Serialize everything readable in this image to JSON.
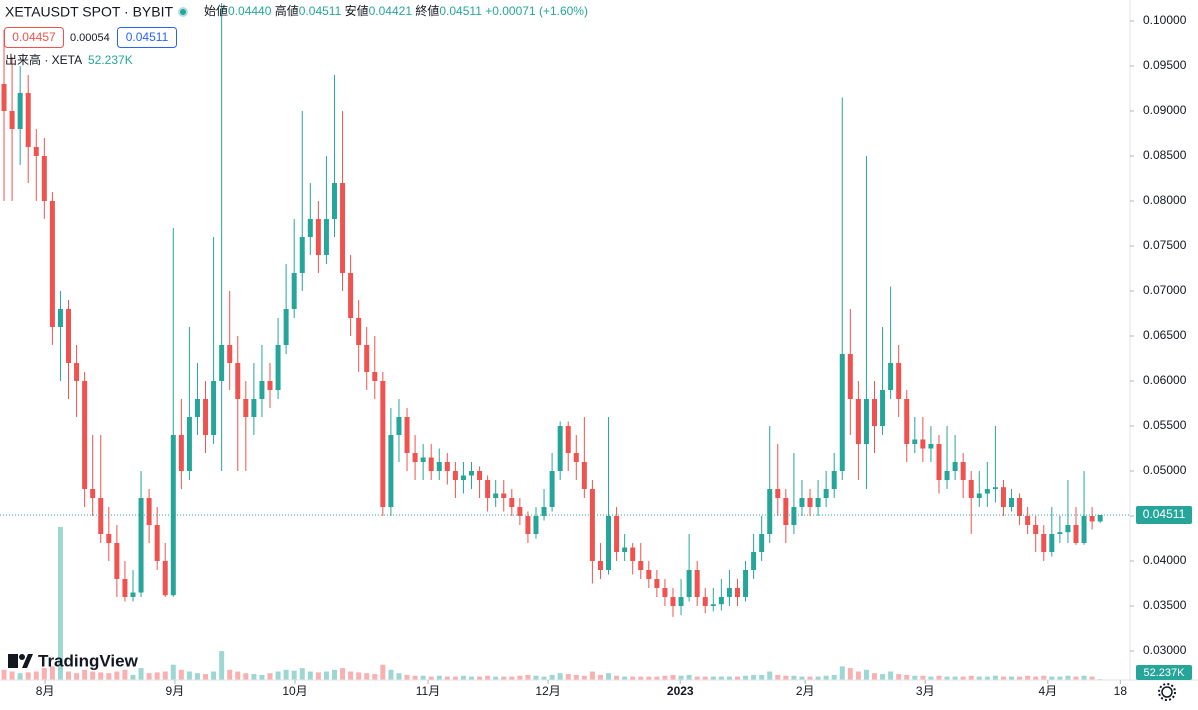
{
  "header": {
    "symbol": "XETAUSDT SPOT · BYBIT",
    "ohlc": [
      {
        "label": "始値",
        "value": "0.04440"
      },
      {
        "label": "高値",
        "value": "0.04511"
      },
      {
        "label": "安値",
        "value": "0.04421"
      },
      {
        "label": "終値",
        "value": "0.04511"
      }
    ],
    "change": "+0.00071 (+1.60%)",
    "bid": "0.04457",
    "spread": "0.00054",
    "ask": "0.04511",
    "volume_title": "出来高 · XETA",
    "volume_value": "52.237K",
    "logo": "TradingView"
  },
  "chart_data": {
    "type": "candlestick",
    "up_color": "#26a69a",
    "down_color": "#ef5350",
    "grid": false,
    "xlim": [
      -0.5,
      139.7
    ],
    "ylim": [
      0.02678,
      0.10233
    ],
    "yticks": [
      {
        "value": 0.1,
        "label": "0.10000"
      },
      {
        "value": 0.095,
        "label": "0.09500"
      },
      {
        "value": 0.09,
        "label": "0.09000"
      },
      {
        "value": 0.085,
        "label": "0.08500"
      },
      {
        "value": 0.08,
        "label": "0.08000"
      },
      {
        "value": 0.075,
        "label": "0.07500"
      },
      {
        "value": 0.07,
        "label": "0.07000"
      },
      {
        "value": 0.065,
        "label": "0.06500"
      },
      {
        "value": 0.06,
        "label": "0.06000"
      },
      {
        "value": 0.055,
        "label": "0.05500"
      },
      {
        "value": 0.05,
        "label": "0.05000"
      },
      {
        "value": 0.045,
        "label": "0.04500"
      },
      {
        "value": 0.04,
        "label": "0.04000"
      },
      {
        "value": 0.035,
        "label": "0.03500"
      },
      {
        "value": 0.03,
        "label": "0.03000"
      }
    ],
    "xticks": [
      {
        "value": 5.1,
        "label": "8月"
      },
      {
        "value": 21.2,
        "label": "9月"
      },
      {
        "value": 36.1,
        "label": "10月"
      },
      {
        "value": 52.6,
        "label": "11月"
      },
      {
        "value": 67.5,
        "label": "12月"
      },
      {
        "value": 83.9,
        "label": "2023"
      },
      {
        "value": 99.4,
        "label": "2月"
      },
      {
        "value": 114.3,
        "label": "3月"
      },
      {
        "value": 129.5,
        "label": "4月"
      },
      {
        "value": 138.5,
        "label": "18"
      }
    ],
    "last_price": {
      "value": 0.04511,
      "label": "0.04511"
    },
    "volume_label": "52.237K",
    "volume_lim": [
      0,
      10000
    ],
    "open": [
      0.093,
      0.09,
      0.088,
      0.092,
      0.086,
      0.085,
      0.08,
      0.066,
      0.068,
      0.062,
      0.06,
      0.048,
      0.047,
      0.043,
      0.042,
      0.038,
      0.036,
      0.0365,
      0.047,
      0.044,
      0.04,
      0.0362,
      0.054,
      0.05,
      0.056,
      0.058,
      0.054,
      0.06,
      0.064,
      0.062,
      0.058,
      0.056,
      0.058,
      0.06,
      0.059,
      0.064,
      0.068,
      0.072,
      0.076,
      0.078,
      0.074,
      0.078,
      0.082,
      0.072,
      0.067,
      0.064,
      0.061,
      0.06,
      0.046,
      0.054,
      0.056,
      0.052,
      0.051,
      0.0515,
      0.05,
      0.051,
      0.05,
      0.049,
      0.0495,
      0.05,
      0.049,
      0.047,
      0.0475,
      0.047,
      0.046,
      0.045,
      0.043,
      0.045,
      0.046,
      0.05,
      0.055,
      0.052,
      0.051,
      0.048,
      0.04,
      0.039,
      0.045,
      0.041,
      0.0415,
      0.04,
      0.039,
      0.038,
      0.037,
      0.036,
      0.035,
      0.036,
      0.039,
      0.036,
      0.035,
      0.0352,
      0.036,
      0.037,
      0.036,
      0.039,
      0.041,
      0.043,
      0.048,
      0.047,
      0.044,
      0.046,
      0.047,
      0.046,
      0.047,
      0.048,
      0.05,
      0.063,
      0.058,
      0.053,
      0.058,
      0.055,
      0.059,
      0.062,
      0.058,
      0.053,
      0.0535,
      0.0525,
      0.053,
      0.049,
      0.05,
      0.051,
      0.049,
      0.047,
      0.0475,
      0.048,
      0.0482,
      0.046,
      0.047,
      0.045,
      0.044,
      0.043,
      0.041,
      0.043,
      0.0432,
      0.044,
      0.042,
      0.045,
      0.0444
    ],
    "high": [
      0.099,
      0.096,
      0.095,
      0.094,
      0.088,
      0.087,
      0.081,
      0.07,
      0.069,
      0.064,
      0.061,
      0.054,
      0.054,
      0.046,
      0.044,
      0.04,
      0.039,
      0.05,
      0.048,
      0.046,
      0.042,
      0.077,
      0.058,
      0.066,
      0.062,
      0.06,
      0.076,
      0.102,
      0.07,
      0.065,
      0.06,
      0.062,
      0.064,
      0.062,
      0.067,
      0.073,
      0.078,
      0.09,
      0.082,
      0.08,
      0.085,
      0.094,
      0.09,
      0.074,
      0.069,
      0.066,
      0.065,
      0.061,
      0.057,
      0.058,
      0.057,
      0.054,
      0.053,
      0.053,
      0.0525,
      0.052,
      0.051,
      0.051,
      0.051,
      0.0505,
      0.0495,
      0.049,
      0.049,
      0.048,
      0.047,
      0.0455,
      0.046,
      0.048,
      0.052,
      0.0555,
      0.0555,
      0.054,
      0.056,
      0.049,
      0.042,
      0.056,
      0.046,
      0.043,
      0.042,
      0.042,
      0.04,
      0.039,
      0.038,
      0.037,
      0.038,
      0.043,
      0.04,
      0.037,
      0.037,
      0.038,
      0.039,
      0.038,
      0.04,
      0.043,
      0.045,
      0.055,
      0.053,
      0.048,
      0.052,
      0.049,
      0.048,
      0.049,
      0.05,
      0.052,
      0.0915,
      0.068,
      0.06,
      0.085,
      0.06,
      0.066,
      0.0705,
      0.064,
      0.059,
      0.056,
      0.056,
      0.055,
      0.054,
      0.055,
      0.054,
      0.052,
      0.05,
      0.05,
      0.051,
      0.055,
      0.049,
      0.048,
      0.0475,
      0.046,
      0.045,
      0.044,
      0.046,
      0.045,
      0.049,
      0.046,
      0.05,
      0.046,
      0.04511
    ],
    "low": [
      0.08,
      0.08,
      0.084,
      0.082,
      0.08,
      0.078,
      0.064,
      0.06,
      0.058,
      0.056,
      0.046,
      0.045,
      0.042,
      0.04,
      0.036,
      0.0355,
      0.0355,
      0.036,
      0.042,
      0.039,
      0.036,
      0.036,
      0.048,
      0.049,
      0.054,
      0.052,
      0.053,
      0.05,
      0.059,
      0.05,
      0.05,
      0.054,
      0.056,
      0.057,
      0.058,
      0.063,
      0.067,
      0.07,
      0.074,
      0.072,
      0.073,
      0.076,
      0.07,
      0.065,
      0.061,
      0.059,
      0.058,
      0.045,
      0.045,
      0.051,
      0.05,
      0.049,
      0.049,
      0.049,
      0.049,
      0.0485,
      0.047,
      0.0475,
      0.048,
      0.047,
      0.0455,
      0.046,
      0.0455,
      0.045,
      0.044,
      0.042,
      0.0425,
      0.0445,
      0.0455,
      0.049,
      0.05,
      0.049,
      0.047,
      0.0375,
      0.038,
      0.0385,
      0.04,
      0.04,
      0.0385,
      0.038,
      0.037,
      0.036,
      0.035,
      0.0338,
      0.034,
      0.0355,
      0.035,
      0.0342,
      0.0344,
      0.0345,
      0.035,
      0.035,
      0.0355,
      0.038,
      0.04,
      0.042,
      0.045,
      0.042,
      0.043,
      0.045,
      0.045,
      0.045,
      0.046,
      0.047,
      0.049,
      0.054,
      0.049,
      0.048,
      0.052,
      0.054,
      0.058,
      0.056,
      0.051,
      0.052,
      0.051,
      0.051,
      0.0475,
      0.048,
      0.049,
      0.047,
      0.043,
      0.046,
      0.046,
      0.0465,
      0.045,
      0.0455,
      0.044,
      0.043,
      0.041,
      0.04,
      0.0405,
      0.042,
      0.042,
      0.0418,
      0.0418,
      0.0435,
      0.04421
    ],
    "close": [
      0.09,
      0.088,
      0.092,
      0.086,
      0.085,
      0.08,
      0.066,
      0.068,
      0.062,
      0.06,
      0.048,
      0.047,
      0.043,
      0.042,
      0.038,
      0.036,
      0.0365,
      0.047,
      0.044,
      0.04,
      0.0362,
      0.054,
      0.05,
      0.056,
      0.058,
      0.054,
      0.06,
      0.064,
      0.062,
      0.058,
      0.056,
      0.058,
      0.06,
      0.059,
      0.064,
      0.068,
      0.072,
      0.076,
      0.078,
      0.074,
      0.078,
      0.082,
      0.072,
      0.067,
      0.064,
      0.061,
      0.06,
      0.046,
      0.054,
      0.056,
      0.052,
      0.051,
      0.0515,
      0.05,
      0.051,
      0.05,
      0.049,
      0.0495,
      0.05,
      0.049,
      0.047,
      0.0475,
      0.047,
      0.046,
      0.045,
      0.043,
      0.045,
      0.046,
      0.05,
      0.055,
      0.052,
      0.051,
      0.048,
      0.04,
      0.039,
      0.045,
      0.041,
      0.0415,
      0.04,
      0.039,
      0.038,
      0.037,
      0.036,
      0.035,
      0.036,
      0.039,
      0.036,
      0.035,
      0.0352,
      0.036,
      0.037,
      0.036,
      0.039,
      0.041,
      0.043,
      0.048,
      0.047,
      0.044,
      0.046,
      0.047,
      0.046,
      0.047,
      0.048,
      0.05,
      0.063,
      0.058,
      0.053,
      0.058,
      0.055,
      0.059,
      0.062,
      0.058,
      0.053,
      0.0535,
      0.0525,
      0.053,
      0.049,
      0.05,
      0.051,
      0.049,
      0.047,
      0.0475,
      0.048,
      0.0482,
      0.046,
      0.047,
      0.045,
      0.044,
      0.043,
      0.041,
      0.043,
      0.0432,
      0.044,
      0.042,
      0.045,
      0.0444,
      0.04511
    ],
    "volume": [
      600,
      500,
      400,
      450,
      500,
      700,
      800,
      9000,
      500,
      400,
      600,
      500,
      450,
      400,
      500,
      600,
      300,
      700,
      400,
      450,
      500,
      900,
      600,
      500,
      400,
      350,
      500,
      1700,
      600,
      500,
      400,
      350,
      300,
      400,
      500,
      600,
      550,
      700,
      500,
      450,
      500,
      600,
      700,
      500,
      450,
      400,
      350,
      900,
      600,
      400,
      300,
      250,
      250,
      200,
      250,
      200,
      200,
      250,
      200,
      200,
      250,
      200,
      200,
      200,
      250,
      300,
      250,
      200,
      300,
      400,
      350,
      300,
      250,
      500,
      300,
      400,
      250,
      200,
      200,
      200,
      200,
      200,
      250,
      300,
      250,
      300,
      200,
      200,
      200,
      200,
      200,
      200,
      250,
      300,
      300,
      500,
      300,
      250,
      250,
      200,
      200,
      200,
      250,
      300,
      800,
      700,
      500,
      600,
      400,
      350,
      500,
      350,
      300,
      250,
      250,
      200,
      250,
      200,
      200,
      200,
      250,
      200,
      200,
      250,
      200,
      200,
      200,
      250,
      200,
      250,
      200,
      200,
      250,
      200,
      250,
      200,
      52.237
    ]
  }
}
